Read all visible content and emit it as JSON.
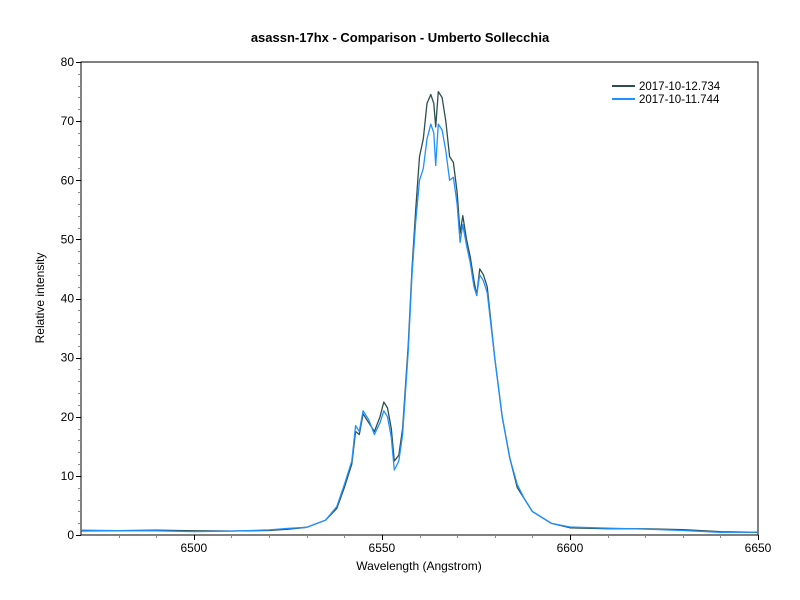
{
  "chart_data": {
    "type": "line",
    "title": "asassn-17hx - Comparison - Umberto Sollecchia",
    "xlabel": "Wavelength (Angstrom)",
    "ylabel": "Relative intensity",
    "xlim": [
      6470,
      6650
    ],
    "ylim": [
      0,
      80
    ],
    "xticks": [
      6500,
      6550,
      6600,
      6650
    ],
    "yticks": [
      0,
      10,
      20,
      30,
      40,
      50,
      60,
      70,
      80
    ],
    "grid": false,
    "legend_position": "upper right",
    "series": [
      {
        "name": "2017-10-12.734",
        "color": "#2f4f4f",
        "x": [
          6470,
          6480,
          6490,
          6500,
          6510,
          6520,
          6525,
          6530,
          6535,
          6538,
          6540,
          6542,
          6543,
          6544,
          6545,
          6546.5,
          6548,
          6549.5,
          6550.5,
          6551.5,
          6552.5,
          6553.3,
          6554.5,
          6555.5,
          6557,
          6558,
          6559,
          6560,
          6561,
          6562,
          6563,
          6563.8,
          6564.3,
          6565,
          6566,
          6567,
          6568,
          6569,
          6570,
          6570.8,
          6571.5,
          6572.5,
          6573.5,
          6574.5,
          6575.2,
          6576,
          6577,
          6578,
          6580,
          6582,
          6584,
          6586,
          6588,
          6590,
          6595,
          6600,
          6610,
          6620,
          6630,
          6640,
          6650
        ],
        "y": [
          0.7,
          0.6,
          0.7,
          0.7,
          0.8,
          0.9,
          1.0,
          1.3,
          2.5,
          4.5,
          8.0,
          12.0,
          17.5,
          17.0,
          20.5,
          19.0,
          17.5,
          20.0,
          22.5,
          21.5,
          18.0,
          12.5,
          13.5,
          18.0,
          32.0,
          45.0,
          55.0,
          64.0,
          67.0,
          73.0,
          74.5,
          73.0,
          69.0,
          75.0,
          74.0,
          70.0,
          64.0,
          63.0,
          58.0,
          51.0,
          54.0,
          50.0,
          47.0,
          43.0,
          40.5,
          45.0,
          44.0,
          42.0,
          30.0,
          20.0,
          13.0,
          8.0,
          6.0,
          4.0,
          2.0,
          1.3,
          1.0,
          0.9,
          0.8,
          0.6,
          0.6
        ]
      },
      {
        "name": "2017-10-11.744",
        "color": "#1e90ff",
        "x": [
          6470,
          6480,
          6490,
          6500,
          6510,
          6520,
          6525,
          6530,
          6535,
          6538,
          6540,
          6542,
          6543,
          6544,
          6545,
          6546.5,
          6548,
          6549.5,
          6550.5,
          6551.5,
          6552.5,
          6553.3,
          6554.5,
          6555.5,
          6557,
          6558,
          6559,
          6560,
          6561,
          6562,
          6563,
          6563.8,
          6564.3,
          6565,
          6566,
          6567,
          6568,
          6569,
          6570,
          6570.8,
          6571.5,
          6572.5,
          6573.5,
          6574.5,
          6575.2,
          6576,
          6577,
          6578,
          6580,
          6582,
          6584,
          6586,
          6588,
          6590,
          6595,
          6600,
          6610,
          6620,
          6630,
          6640,
          6650
        ],
        "y": [
          0.7,
          0.6,
          0.7,
          0.7,
          0.8,
          0.9,
          1.0,
          1.3,
          2.5,
          4.8,
          8.5,
          12.5,
          18.5,
          17.5,
          21.0,
          19.5,
          17.0,
          19.0,
          21.0,
          20.0,
          16.5,
          11.0,
          12.5,
          17.0,
          31.0,
          44.0,
          53.0,
          60.0,
          62.0,
          67.0,
          69.5,
          68.0,
          62.5,
          69.5,
          68.5,
          65.0,
          60.0,
          60.5,
          56.0,
          49.5,
          52.5,
          49.0,
          46.0,
          42.0,
          40.5,
          44.0,
          43.0,
          41.0,
          30.0,
          20.0,
          13.0,
          8.5,
          6.0,
          4.0,
          2.0,
          1.3,
          1.0,
          0.9,
          0.8,
          0.6,
          0.6
        ]
      }
    ]
  },
  "legend": {
    "items": [
      {
        "label": "2017-10-12.734",
        "color": "#2f4f4f"
      },
      {
        "label": "2017-10-11.744",
        "color": "#1e90ff"
      }
    ]
  }
}
